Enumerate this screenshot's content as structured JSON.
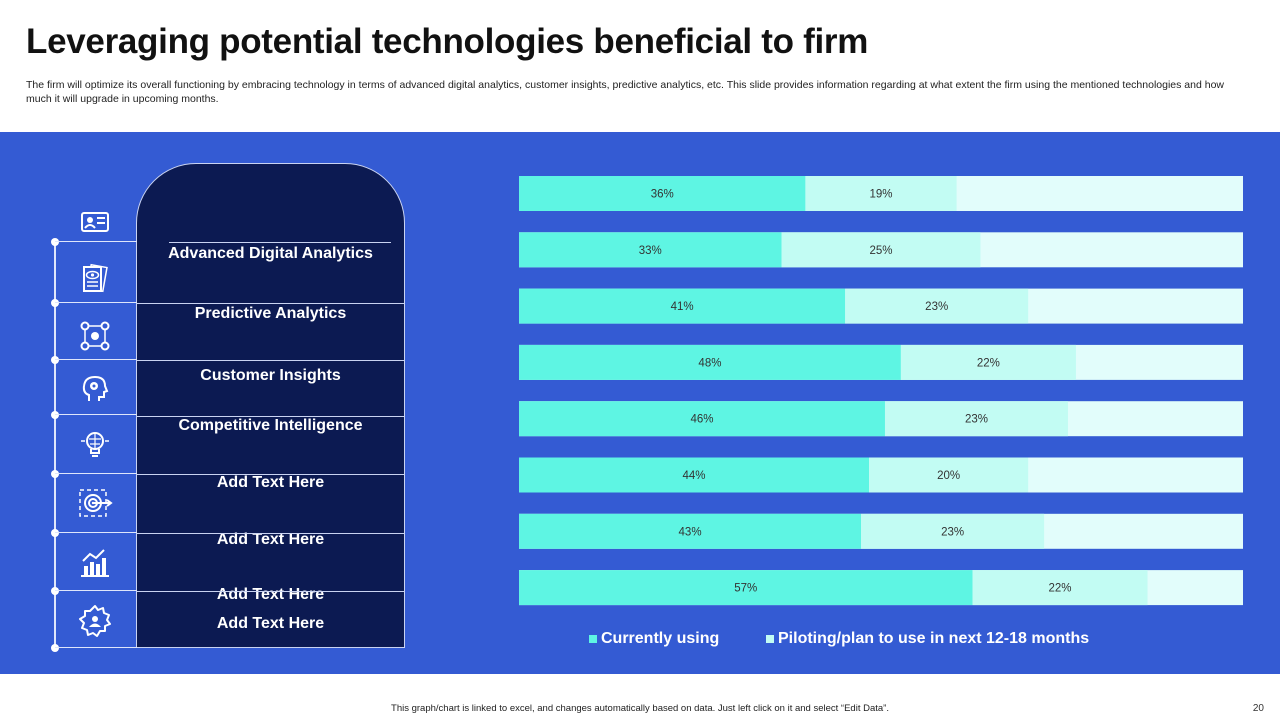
{
  "title": "Leveraging potential technologies beneficial to firm",
  "subtitle": "The firm will optimize its overall functioning by embracing technology in terms of advanced digital analytics, customer insights, predictive analytics, etc. This slide provides information regarding at what extent the firm using the mentioned technologies and how much it will upgrade in upcoming months.",
  "rows": [
    {
      "label": "Advanced Digital Analytics",
      "icon": "id-card-icon"
    },
    {
      "label": "Predictive Analytics",
      "icon": "document-eye-icon"
    },
    {
      "label": "Customer Insights",
      "icon": "network-nodes-icon"
    },
    {
      "label": "Competitive Intelligence",
      "icon": "head-gear-icon"
    },
    {
      "label": "Add Text Here",
      "icon": "brain-bulb-icon"
    },
    {
      "label": "Add Text Here",
      "icon": "target-arrow-icon"
    },
    {
      "label": "Add Text Here",
      "icon": "bar-growth-icon"
    },
    {
      "label": "Add Text Here",
      "icon": "gear-person-icon"
    }
  ],
  "chart_data": {
    "type": "bar",
    "orientation": "horizontal",
    "stacked": true,
    "categories": [
      "Advanced Digital Analytics",
      "Predictive Analytics",
      "Customer Insights",
      "Competitive Intelligence",
      "Add Text Here",
      "Add Text Here",
      "Add Text Here",
      "Add Text Here"
    ],
    "series": [
      {
        "name": "Currently using",
        "values": [
          36,
          33,
          41,
          48,
          46,
          44,
          43,
          57
        ],
        "labels": [
          "36%",
          "33%",
          "41%",
          "48%",
          "46%",
          "44%",
          "43%",
          "57%"
        ],
        "color": "#5ef5e3"
      },
      {
        "name": "Piloting/plan to use in next 12-18 months",
        "values": [
          19,
          25,
          23,
          22,
          23,
          20,
          23,
          22
        ],
        "labels": [
          "19%",
          "25%",
          "23%",
          "22%",
          "23%",
          "20%",
          "23%",
          "22%"
        ],
        "color": "#c2fcf3"
      }
    ],
    "remainder_color": "#e2fdfb",
    "xlim": [
      0,
      91
    ],
    "legend_position": "bottom"
  },
  "footer_note": "This graph/chart is linked to excel, and changes automatically based on data. Just left click on it and select “Edit Data”.",
  "page_number": "20",
  "colors": {
    "panel": "#345bd3",
    "label_column": "#0c1a52",
    "accent": "#5ef5e3"
  }
}
